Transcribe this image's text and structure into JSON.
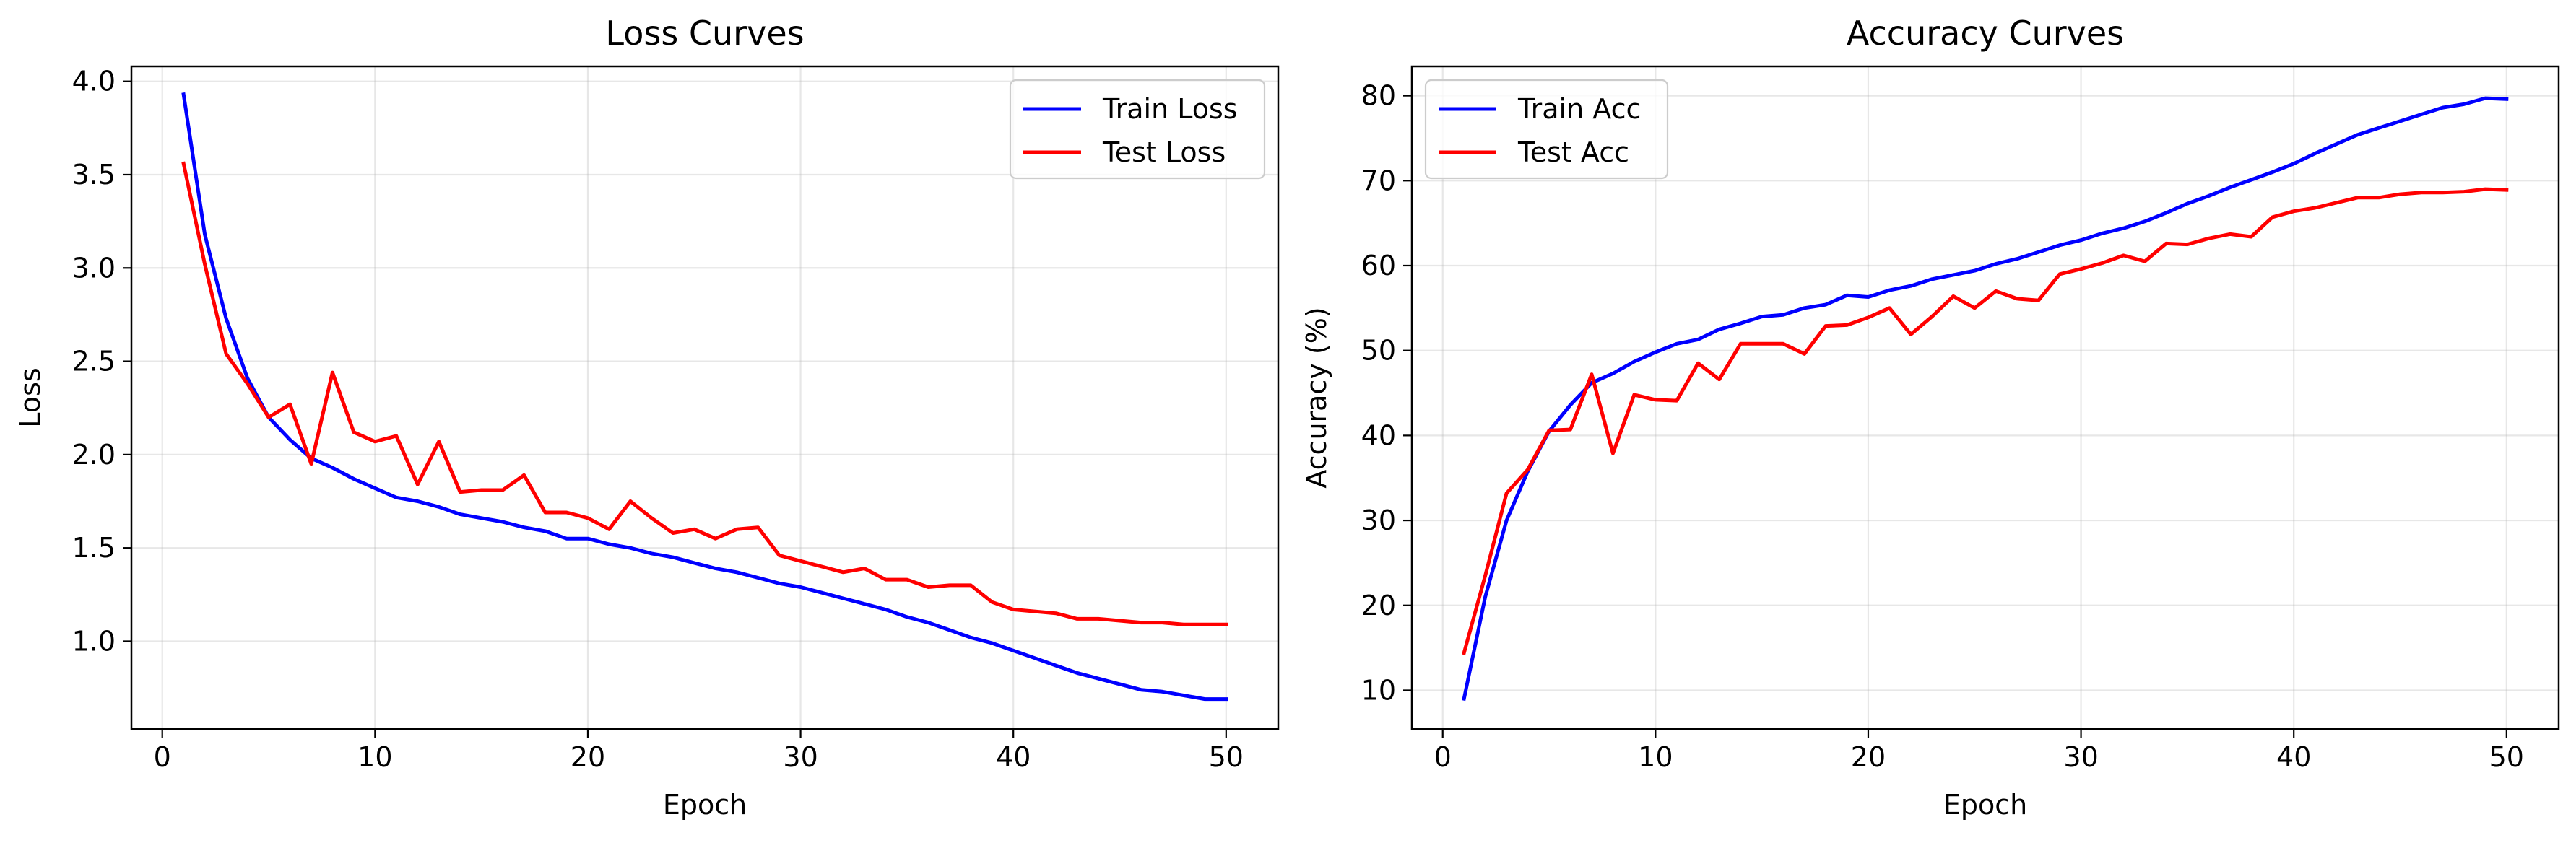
{
  "chart_data": [
    {
      "type": "line",
      "title": "Loss Curves",
      "xlabel": "Epoch",
      "ylabel": "Loss",
      "xlim": [
        -1.45,
        52.45
      ],
      "ylim": [
        0.53,
        4.08
      ],
      "xticks": [
        0,
        10,
        20,
        30,
        40,
        50
      ],
      "yticks": [
        1.0,
        1.5,
        2.0,
        2.5,
        3.0,
        3.5,
        4.0
      ],
      "ytick_labels": [
        "1.0",
        "1.5",
        "2.0",
        "2.5",
        "3.0",
        "3.5",
        "4.0"
      ],
      "grid": true,
      "legend_position": "top-right",
      "x": [
        1,
        2,
        3,
        4,
        5,
        6,
        7,
        8,
        9,
        10,
        11,
        12,
        13,
        14,
        15,
        16,
        17,
        18,
        19,
        20,
        21,
        22,
        23,
        24,
        25,
        26,
        27,
        28,
        29,
        30,
        31,
        32,
        33,
        34,
        35,
        36,
        37,
        38,
        39,
        40,
        41,
        42,
        43,
        44,
        45,
        46,
        47,
        48,
        49,
        50
      ],
      "series": [
        {
          "name": "Train Loss",
          "color": "#0000ff",
          "values": [
            3.93,
            3.18,
            2.73,
            2.41,
            2.2,
            2.08,
            1.98,
            1.93,
            1.87,
            1.82,
            1.77,
            1.75,
            1.72,
            1.68,
            1.66,
            1.64,
            1.61,
            1.59,
            1.55,
            1.55,
            1.52,
            1.5,
            1.47,
            1.45,
            1.42,
            1.39,
            1.37,
            1.34,
            1.31,
            1.29,
            1.26,
            1.23,
            1.2,
            1.17,
            1.13,
            1.1,
            1.06,
            1.02,
            0.99,
            0.95,
            0.91,
            0.87,
            0.83,
            0.8,
            0.77,
            0.74,
            0.73,
            0.71,
            0.69,
            0.69
          ]
        },
        {
          "name": "Test Loss",
          "color": "#ff0000",
          "values": [
            3.56,
            3.02,
            2.54,
            2.38,
            2.2,
            2.27,
            1.95,
            2.44,
            2.12,
            2.07,
            2.1,
            1.84,
            2.07,
            1.8,
            1.81,
            1.81,
            1.89,
            1.69,
            1.69,
            1.66,
            1.6,
            1.75,
            1.66,
            1.58,
            1.6,
            1.55,
            1.6,
            1.61,
            1.46,
            1.43,
            1.4,
            1.37,
            1.39,
            1.33,
            1.33,
            1.29,
            1.3,
            1.3,
            1.21,
            1.17,
            1.16,
            1.15,
            1.12,
            1.12,
            1.11,
            1.1,
            1.1,
            1.09,
            1.09,
            1.09
          ]
        }
      ]
    },
    {
      "type": "line",
      "title": "Accuracy Curves",
      "xlabel": "Epoch",
      "ylabel": "Accuracy (%)",
      "xlim": [
        -1.45,
        52.45
      ],
      "ylim": [
        5.45,
        83.45
      ],
      "xticks": [
        0,
        10,
        20,
        30,
        40,
        50
      ],
      "yticks": [
        10,
        20,
        30,
        40,
        50,
        60,
        70,
        80
      ],
      "ytick_labels": [
        "10",
        "20",
        "30",
        "40",
        "50",
        "60",
        "70",
        "80"
      ],
      "grid": true,
      "legend_position": "top-left",
      "x": [
        1,
        2,
        3,
        4,
        5,
        6,
        7,
        8,
        9,
        10,
        11,
        12,
        13,
        14,
        15,
        16,
        17,
        18,
        19,
        20,
        21,
        22,
        23,
        24,
        25,
        26,
        27,
        28,
        29,
        30,
        31,
        32,
        33,
        34,
        35,
        36,
        37,
        38,
        39,
        40,
        41,
        42,
        43,
        44,
        45,
        46,
        47,
        48,
        49,
        50
      ],
      "series": [
        {
          "name": "Train Acc",
          "color": "#0000ff",
          "values": [
            9.0,
            21.0,
            30.0,
            35.8,
            40.5,
            43.6,
            46.2,
            47.3,
            48.7,
            49.8,
            50.8,
            51.3,
            52.5,
            53.2,
            54.0,
            54.2,
            55.0,
            55.4,
            56.5,
            56.3,
            57.1,
            57.6,
            58.4,
            58.9,
            59.4,
            60.2,
            60.8,
            61.6,
            62.4,
            63.0,
            63.8,
            64.4,
            65.2,
            66.2,
            67.3,
            68.2,
            69.2,
            70.1,
            71.0,
            72.0,
            73.2,
            74.3,
            75.4,
            76.2,
            77.0,
            77.8,
            78.6,
            79.0,
            79.7,
            79.6
          ]
        },
        {
          "name": "Test Acc",
          "color": "#ff0000",
          "values": [
            14.4,
            23.5,
            33.2,
            36.0,
            40.6,
            40.7,
            47.2,
            37.9,
            44.8,
            44.2,
            44.1,
            48.5,
            46.6,
            50.8,
            50.8,
            50.8,
            49.6,
            52.9,
            53.0,
            53.9,
            55.0,
            51.9,
            54.0,
            56.4,
            55.0,
            57.0,
            56.1,
            55.9,
            59.0,
            59.6,
            60.3,
            61.2,
            60.5,
            62.6,
            62.5,
            63.2,
            63.7,
            63.4,
            65.7,
            66.4,
            66.8,
            67.4,
            68.0,
            68.0,
            68.4,
            68.6,
            68.6,
            68.7,
            69.0,
            68.9
          ]
        }
      ]
    }
  ]
}
